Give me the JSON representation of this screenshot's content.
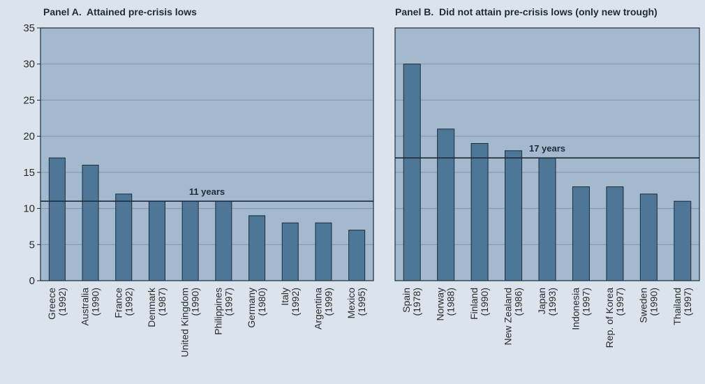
{
  "colors": {
    "background": "#dbe4ec",
    "plot_area": "#a3b9cd",
    "bar_fill": "#4e7696",
    "bar_stroke": "#1d2b39",
    "axis": "#1d2b39",
    "gridline": "#7f95a8"
  },
  "chart_data": [
    {
      "type": "bar",
      "title": "Panel A.  Attained pre-crisis lows",
      "categories": [
        [
          "Greece",
          "(1992)"
        ],
        [
          "Australia",
          "(1990)"
        ],
        [
          "France",
          "(1992)"
        ],
        [
          "Denmark",
          "(1987)"
        ],
        [
          "United Kingdom",
          "(1990)"
        ],
        [
          "Philippines",
          "(1997)"
        ],
        [
          "Germany",
          "(1980)"
        ],
        [
          "Italy",
          "(1992)"
        ],
        [
          "Argentina",
          "(1999)"
        ],
        [
          "Mexico",
          "(1995)"
        ]
      ],
      "values": [
        17,
        16,
        12,
        11,
        11,
        11,
        9,
        8,
        8,
        7
      ],
      "ylim": [
        0,
        35
      ],
      "yticks": [
        0,
        5,
        10,
        15,
        20,
        25,
        30,
        35
      ],
      "grid": true,
      "reference_line": {
        "value": 11,
        "label": "11 years"
      }
    },
    {
      "type": "bar",
      "title": "Panel B.  Did not attain pre-crisis lows (only new trough)",
      "categories": [
        [
          "Spain",
          "(1978)"
        ],
        [
          "Norway",
          "(1988)"
        ],
        [
          "Finland",
          "(1990)"
        ],
        [
          "New Zealand",
          "(1986)"
        ],
        [
          "Japan",
          "(1993)"
        ],
        [
          "Indonesia",
          "(1997)"
        ],
        [
          "Rep. of Korea",
          "(1997)"
        ],
        [
          "Sweden",
          "(1990)"
        ],
        [
          "Thailand",
          "(1997)"
        ]
      ],
      "values": [
        30,
        21,
        19,
        18,
        17,
        13,
        13,
        12,
        11
      ],
      "ylim": [
        0,
        35
      ],
      "yticks": [],
      "grid": true,
      "reference_line": {
        "value": 17,
        "label": "17 years"
      }
    }
  ]
}
